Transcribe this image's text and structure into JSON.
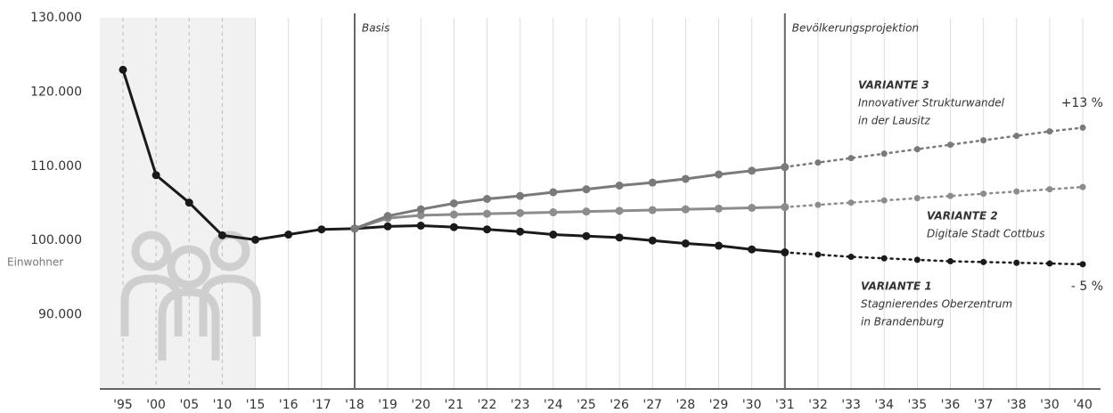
{
  "chart_data": {
    "type": "line",
    "categories": [
      "'95",
      "'00",
      "'05",
      "'10",
      "'15",
      "'16",
      "'17",
      "'18",
      "'19",
      "'20",
      "'21",
      "'22",
      "'23",
      "'24",
      "'25",
      "'26",
      "'27",
      "'28",
      "'29",
      "'30",
      "'31",
      "'32",
      "'33",
      "'34",
      "'35",
      "'36",
      "'37",
      "'38",
      "'30",
      "'40"
    ],
    "ylim": [
      80000,
      130000
    ],
    "yticks": [
      {
        "value": 90000,
        "label": "90.000"
      },
      {
        "value": 100000,
        "label": "100.000"
      },
      {
        "value": 110000,
        "label": "110.000"
      },
      {
        "value": 120000,
        "label": "120.000"
      },
      {
        "value": 130000,
        "label": "130.000"
      }
    ],
    "y_axis_label": "Einwohner",
    "grid": "vertical",
    "shade_until": "'15",
    "vlines": [
      {
        "category": "'18",
        "label": "Basis"
      },
      {
        "category": "'31",
        "label": "Bevölkerungsprojektion"
      }
    ],
    "series": [
      {
        "color": "#1a1a1a",
        "linestyle": "solid",
        "values": [
          123000,
          108800,
          105100,
          100700,
          100100,
          100800,
          101500,
          101600,
          null,
          null,
          null,
          null,
          null,
          null,
          null,
          null,
          null,
          null,
          null,
          null,
          null,
          null,
          null,
          null,
          null,
          null,
          null,
          null,
          null,
          null
        ]
      },
      {
        "color": "#1a1a1a",
        "linestyle": "solid",
        "values": [
          null,
          null,
          null,
          null,
          null,
          null,
          null,
          101600,
          101900,
          102000,
          101800,
          101500,
          101200,
          100800,
          100600,
          100400,
          100000,
          99600,
          99300,
          98800,
          98400,
          null,
          null,
          null,
          null,
          null,
          null,
          null,
          null,
          null
        ]
      },
      {
        "color": "#1a1a1a",
        "linestyle": "dotted",
        "values": [
          null,
          null,
          null,
          null,
          null,
          null,
          null,
          null,
          null,
          null,
          null,
          null,
          null,
          null,
          null,
          null,
          null,
          null,
          null,
          null,
          98400,
          98100,
          97800,
          97600,
          97400,
          97200,
          97100,
          97000,
          96900,
          96800
        ]
      },
      {
        "color": "#8c8c8c",
        "linestyle": "solid",
        "values": [
          null,
          null,
          null,
          null,
          null,
          null,
          null,
          101600,
          103000,
          103400,
          103500,
          103600,
          103700,
          103800,
          103900,
          104000,
          104100,
          104200,
          104300,
          104400,
          104500,
          null,
          null,
          null,
          null,
          null,
          null,
          null,
          null,
          null
        ]
      },
      {
        "color": "#8c8c8c",
        "linestyle": "dotted",
        "values": [
          null,
          null,
          null,
          null,
          null,
          null,
          null,
          null,
          null,
          null,
          null,
          null,
          null,
          null,
          null,
          null,
          null,
          null,
          null,
          null,
          104500,
          104800,
          105100,
          105400,
          105700,
          106000,
          106300,
          106600,
          106900,
          107200
        ]
      },
      {
        "color": "#7a7a7a",
        "linestyle": "solid",
        "values": [
          null,
          null,
          null,
          null,
          null,
          null,
          null,
          101600,
          103300,
          104200,
          105000,
          105600,
          106000,
          106500,
          106900,
          107400,
          107800,
          108300,
          108900,
          109400,
          109900,
          null,
          null,
          null,
          null,
          null,
          null,
          null,
          null,
          null
        ]
      },
      {
        "color": "#7a7a7a",
        "linestyle": "dotted",
        "values": [
          null,
          null,
          null,
          null,
          null,
          null,
          null,
          null,
          null,
          null,
          null,
          null,
          null,
          null,
          null,
          null,
          null,
          null,
          null,
          null,
          109900,
          110500,
          111100,
          111700,
          112300,
          112900,
          113500,
          114100,
          114700,
          115200
        ]
      }
    ],
    "annotations": [
      {
        "lines": [
          "VARIANTE 3",
          "Innovativer Strukturwandel",
          "in der Lausitz"
        ],
        "change": "+13 %"
      },
      {
        "lines": [
          "VARIANTE 2",
          "Digitale Stadt Cottbus"
        ]
      },
      {
        "lines": [
          "VARIANTE 1",
          "Stagnierendes Oberzentrum",
          "in Brandenburg"
        ],
        "change": "- 5 %"
      }
    ]
  }
}
